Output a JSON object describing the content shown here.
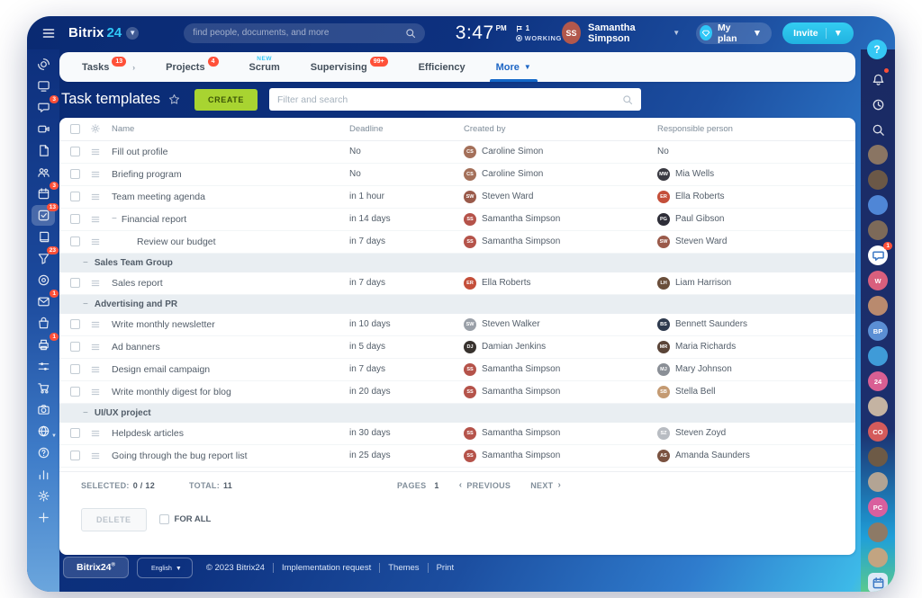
{
  "topbar": {
    "logo_text": "Bitrix",
    "logo_number": "24",
    "search_placeholder": "find people, documents, and more",
    "time": "3:47",
    "time_suffix": "PM",
    "flag_count": "1",
    "status": "WORKING",
    "user_name": "Samantha Simpson",
    "user_initials": "SS",
    "my_plan_label": "My plan",
    "invite_label": "Invite",
    "help_label": "?"
  },
  "tabs": [
    {
      "label": "Tasks",
      "badge": "13",
      "chevron": true
    },
    {
      "label": "Projects",
      "badge": "4"
    },
    {
      "label": "Scrum",
      "sub": "NEW"
    },
    {
      "label": "Supervising",
      "badge": "99+"
    },
    {
      "label": "Efficiency"
    },
    {
      "label": "More",
      "active": true
    }
  ],
  "page": {
    "title": "Task templates",
    "create_label": "CREATE",
    "filter_placeholder": "Filter and search"
  },
  "table": {
    "headers": {
      "name": "Name",
      "deadline": "Deadline",
      "created_by": "Created by",
      "responsible": "Responsible person"
    },
    "rows": [
      {
        "name": "Fill out profile",
        "deadline": "No",
        "created_by": "Caroline Simon",
        "responsible": "No"
      },
      {
        "name": "Briefing program",
        "deadline": "No",
        "created_by": "Caroline Simon",
        "responsible": "Mia Wells"
      },
      {
        "name": "Team meeting agenda",
        "deadline": "in 1 hour",
        "created_by": "Steven Ward",
        "responsible": "Ella Roberts"
      },
      {
        "name": "Financial report",
        "expander": true,
        "deadline": "in 14 days",
        "created_by": "Samantha Simpson",
        "responsible": "Paul Gibson"
      },
      {
        "name": "Review our budget",
        "indent": true,
        "deadline": "in 7 days",
        "created_by": "Samantha Simpson",
        "responsible": "Steven Ward"
      },
      {
        "section": "Sales Team Group"
      },
      {
        "name": "Sales report",
        "deadline": "in 7 days",
        "created_by": "Ella Roberts",
        "responsible": "Liam Harrison"
      },
      {
        "section": "Advertising and PR"
      },
      {
        "name": "Write monthly newsletter",
        "deadline": "in 10 days",
        "created_by": "Steven Walker",
        "responsible": "Bennett Saunders"
      },
      {
        "name": "Ad banners",
        "deadline": "in 5 days",
        "created_by": "Damian Jenkins",
        "responsible": "Maria Richards"
      },
      {
        "name": "Design email campaign",
        "deadline": "in 7 days",
        "created_by": "Samantha Simpson",
        "responsible": "Mary Johnson"
      },
      {
        "name": "Write monthly digest for blog",
        "deadline": "in 20 days",
        "created_by": "Samantha Simpson",
        "responsible": "Stella Bell"
      },
      {
        "section": "UI/UX project"
      },
      {
        "name": "Helpdesk articles",
        "deadline": "in 30 days",
        "created_by": "Samantha Simpson",
        "responsible": "Steven Zoyd"
      },
      {
        "name": "Going through the bug report list",
        "deadline": "in 25 days",
        "created_by": "Samantha Simpson",
        "responsible": "Amanda Saunders"
      }
    ],
    "people_colors": {
      "Caroline Simon": "#a4705a",
      "Mia Wells": "#3a3a42",
      "Steven Ward": "#9a5a4a",
      "Ella Roberts": "#c44f3a",
      "Samantha Simpson": "#b5534a",
      "Paul Gibson": "#2e2e38",
      "Steven Walker": "#9aa0a8",
      "Damian Jenkins": "#38322e",
      "Bennett Saunders": "#2e3a4e",
      "Maria Richards": "#5a4438",
      "Mary Johnson": "#8a8f96",
      "Stella Bell": "#c49a72",
      "Liam Harrison": "#6a4e3a",
      "Steven Zoyd": "#b8bcc2",
      "Amanda Saunders": "#7a5240"
    }
  },
  "pagination": {
    "selected_label": "SELECTED:",
    "selected_value": "0 / 12",
    "total_label": "TOTAL:",
    "total_value": "11",
    "pages_label": "PAGES",
    "pages_value": "1",
    "previous": "PREVIOUS",
    "next": "NEXT"
  },
  "actions": {
    "delete_label": "DELETE",
    "for_all_label": "FOR ALL"
  },
  "footer": {
    "brand": "Bitrix24",
    "brand_reg": "®",
    "lang": "English",
    "copyright": "© 2023 Bitrix24",
    "links": [
      "Implementation request",
      "Themes",
      "Print"
    ]
  },
  "left_rail": [
    {
      "icon": "feed",
      "name": "feed"
    },
    {
      "icon": "desktop",
      "name": "desktop-app"
    },
    {
      "icon": "chat",
      "name": "messenger",
      "badge": "3"
    },
    {
      "icon": "video",
      "name": "video-calls"
    },
    {
      "icon": "doc",
      "name": "docs"
    },
    {
      "icon": "people",
      "name": "workgroups"
    },
    {
      "icon": "calendar",
      "name": "calendar",
      "badge": "3"
    },
    {
      "icon": "tasks",
      "name": "tasks",
      "badge": "13",
      "active": true
    },
    {
      "icon": "book",
      "name": "crm"
    },
    {
      "icon": "funnel",
      "name": "sales-funnel",
      "badge": "23"
    },
    {
      "icon": "target",
      "name": "marketing"
    },
    {
      "icon": "mail",
      "name": "mail",
      "badge": "1"
    },
    {
      "icon": "bag",
      "name": "shop"
    },
    {
      "icon": "printer",
      "name": "sites",
      "badge": "1"
    },
    {
      "icon": "sliders",
      "name": "automation"
    },
    {
      "icon": "cart",
      "name": "online-store"
    },
    {
      "icon": "camera",
      "name": "company"
    },
    {
      "icon": "globe",
      "name": "sitemap",
      "chevron": true
    },
    {
      "icon": "help",
      "name": "support"
    },
    {
      "icon": "chart",
      "name": "analytics"
    },
    {
      "icon": "gear",
      "name": "settings"
    },
    {
      "icon": "plus",
      "name": "add-section"
    }
  ],
  "right_rail": [
    {
      "kind": "icon",
      "icon": "bell",
      "name": "notifications-icon",
      "dot": true
    },
    {
      "kind": "icon",
      "icon": "clock",
      "name": "history-icon"
    },
    {
      "kind": "icon",
      "icon": "search",
      "name": "rail-search-icon"
    },
    {
      "kind": "avatar",
      "bg": "#8a7563",
      "label": ""
    },
    {
      "kind": "avatar",
      "bg": "#6b5847",
      "label": ""
    },
    {
      "kind": "avatar",
      "bg": "#4f86d6",
      "label": ""
    },
    {
      "kind": "avatar",
      "bg": "#7d6a59",
      "label": ""
    },
    {
      "kind": "chat",
      "bg": "#ffffff",
      "badge": "1"
    },
    {
      "kind": "avatar",
      "bg": "#d95f7d",
      "label": "W"
    },
    {
      "kind": "avatar",
      "bg": "#b98a6e",
      "label": ""
    },
    {
      "kind": "avatar",
      "bg": "#5b8fd4",
      "label": "BP"
    },
    {
      "kind": "avatar",
      "bg": "#3f9bd8",
      "label": ""
    },
    {
      "kind": "avatar",
      "bg": "#d95f93",
      "label": "24"
    },
    {
      "kind": "avatar",
      "bg": "#c4b3a2",
      "label": ""
    },
    {
      "kind": "avatar",
      "bg": "#d45b5b",
      "label": "CO"
    },
    {
      "kind": "avatar",
      "bg": "#6d5a46",
      "label": ""
    },
    {
      "kind": "avatar",
      "bg": "#b3a494",
      "label": ""
    },
    {
      "kind": "avatar",
      "bg": "#d95f9e",
      "label": "PC"
    },
    {
      "kind": "avatar",
      "bg": "#8d7a66",
      "label": ""
    },
    {
      "kind": "avatar",
      "bg": "#c2a481",
      "label": ""
    },
    {
      "kind": "square",
      "bg": "#dce9f6",
      "fg": "#3b78c4",
      "icon": "calendar"
    },
    {
      "kind": "square",
      "bg": "#8fd14f",
      "fg": "#ffffff",
      "icon": "calendar"
    }
  ],
  "colors": {
    "badge": "#ff5038",
    "create_button": "#a8d431",
    "invite_button": "#29c6e8",
    "accent_blue": "#1468c8",
    "accent_cyan": "#2fc7f7"
  }
}
